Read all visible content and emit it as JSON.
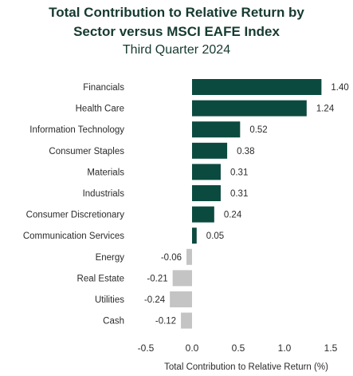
{
  "header": {
    "title_line1": "Total Contribution to Relative Return by",
    "title_line2": "Sector versus MSCI EAFE Index",
    "subtitle": "Third Quarter 2024"
  },
  "chart_data": {
    "type": "bar",
    "orientation": "horizontal",
    "title": "Total Contribution to Relative Return by Sector versus MSCI EAFE Index",
    "subtitle": "Third Quarter 2024",
    "xlabel": "Total Contribution to Relative Return (%)",
    "ylabel": "",
    "xlim": [
      -0.5,
      1.5
    ],
    "xticks": [
      -0.5,
      0.0,
      0.5,
      1.0,
      1.5
    ],
    "xtick_labels": [
      "-0.5",
      "0.0",
      "0.5",
      "1.0",
      "1.5"
    ],
    "grid": false,
    "legend": "none",
    "categories": [
      "Financials",
      "Health Care",
      "Information Technology",
      "Consumer Staples",
      "Materials",
      "Industrials",
      "Consumer Discretionary",
      "Communication Services",
      "Energy",
      "Real Estate",
      "Utilities",
      "Cash"
    ],
    "values": [
      1.4,
      1.24,
      0.52,
      0.38,
      0.31,
      0.31,
      0.24,
      0.05,
      -0.06,
      -0.21,
      -0.24,
      -0.12
    ],
    "value_labels": [
      "1.40",
      "1.24",
      "0.52",
      "0.38",
      "0.31",
      "0.31",
      "0.24",
      "0.05",
      "-0.06",
      "-0.21",
      "-0.24",
      "-0.12"
    ],
    "colors": {
      "positive": "#0b4a3f",
      "negative": "#c4c4c4",
      "text": "#2b2b2b",
      "title": "#163a30"
    }
  }
}
